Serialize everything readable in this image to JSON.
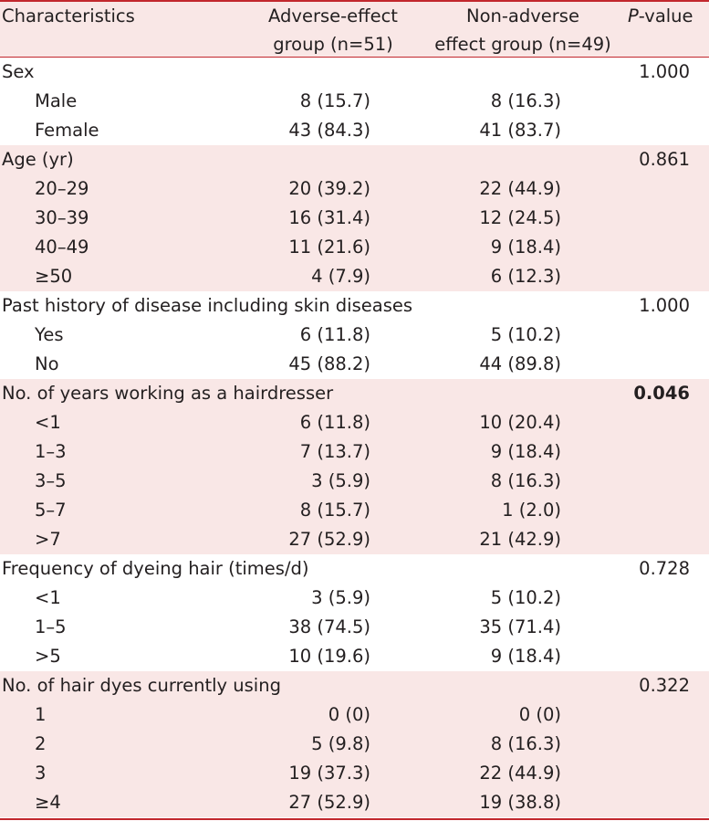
{
  "header": {
    "characteristics": "Characteristics",
    "adverse_line1": "Adverse-effect",
    "adverse_line2": "group (n=51)",
    "nonadverse_line1": "Non-adverse",
    "nonadverse_line2": "effect group (n=49)",
    "p_prefix": "P",
    "p_suffix": "-value"
  },
  "sections": [
    {
      "label": "Sex",
      "p": "1.000",
      "bold": false,
      "rows": [
        {
          "label": "Male",
          "a": "8 (15.7)",
          "n": "8 (16.3)"
        },
        {
          "label": "Female",
          "a": "43 (84.3)",
          "n": "41 (83.7)"
        }
      ]
    },
    {
      "label": "Age (yr)",
      "p": "0.861",
      "bold": false,
      "rows": [
        {
          "label": "20–29",
          "a": "20 (39.2)",
          "n": "22 (44.9)"
        },
        {
          "label": "30–39",
          "a": "16 (31.4)",
          "n": "12 (24.5)"
        },
        {
          "label": "40–49",
          "a": "11 (21.6)",
          "n": "9 (18.4)"
        },
        {
          "label": "≥50",
          "a": "4 (7.9)",
          "n": "6 (12.3)"
        }
      ]
    },
    {
      "label": "Past history of disease including skin diseases",
      "p": "1.000",
      "bold": false,
      "rows": [
        {
          "label": "Yes",
          "a": "6 (11.8)",
          "n": "5 (10.2)"
        },
        {
          "label": "No",
          "a": "45 (88.2)",
          "n": "44 (89.8)"
        }
      ]
    },
    {
      "label": "No. of years working as a hairdresser",
      "p": "0.046",
      "bold": true,
      "rows": [
        {
          "label": "<1",
          "a": "6 (11.8)",
          "n": "10 (20.4)"
        },
        {
          "label": "1–3",
          "a": "7 (13.7)",
          "n": "9 (18.4)"
        },
        {
          "label": "3–5",
          "a": "3 (5.9)",
          "n": "8 (16.3)"
        },
        {
          "label": "5–7",
          "a": "8 (15.7)",
          "n": "1 (2.0)"
        },
        {
          "label": ">7",
          "a": "27 (52.9)",
          "n": "21 (42.9)"
        }
      ]
    },
    {
      "label": "Frequency of dyeing hair (times/d)",
      "p": "0.728",
      "bold": false,
      "rows": [
        {
          "label": "<1",
          "a": "3 (5.9)",
          "n": "5 (10.2)"
        },
        {
          "label": "1–5",
          "a": "38 (74.5)",
          "n": "35 (71.4)"
        },
        {
          "label": ">5",
          "a": "10 (19.6)",
          "n": "9 (18.4)"
        }
      ]
    },
    {
      "label": "No. of hair dyes currently using",
      "p": "0.322",
      "bold": false,
      "rows": [
        {
          "label": "1",
          "a": "0 (0)",
          "n": "0 (0)"
        },
        {
          "label": "2",
          "a": "5 (9.8)",
          "n": "8 (16.3)"
        },
        {
          "label": "3",
          "a": "19 (37.3)",
          "n": "22 (44.9)"
        },
        {
          "label": "≥4",
          "a": "27 (52.9)",
          "n": "19 (38.8)"
        }
      ]
    }
  ]
}
